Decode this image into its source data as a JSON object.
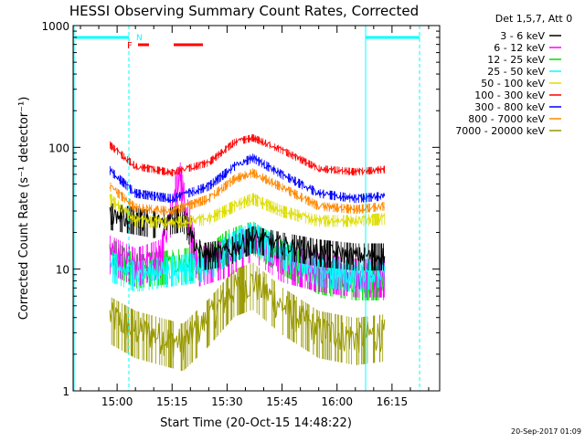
{
  "chart_data": {
    "type": "line",
    "title": "HESSI Observing Summary Count Rates, Corrected",
    "xlabel": "Start Time (20-Oct-15 14:48:22)",
    "ylabel": "Corrected Count Rate (s⁻¹ detector⁻¹)",
    "yscale": "log",
    "ylim": [
      1,
      1000
    ],
    "xlim_minutes": [
      "14:48",
      "16:28"
    ],
    "x_ticks": [
      "15:00",
      "15:15",
      "15:30",
      "15:45",
      "16:00",
      "16:15"
    ],
    "y_ticks": [
      "1",
      "10",
      "100",
      "1000"
    ],
    "data_start": "14:58",
    "data_end": "16:13",
    "legend_header": "Det 1,5,7, Att 0",
    "legend_position": "top-right, outside plot",
    "timestamp": "20-Sep-2017 01:09",
    "series": [
      {
        "name": "3 - 6 keV",
        "color": "#000000",
        "x": [
          "14:58",
          "15:10",
          "15:18",
          "15:23",
          "15:30",
          "15:37",
          "15:45",
          "15:55",
          "16:05",
          "16:13"
        ],
        "y": [
          28,
          24,
          27,
          13,
          14,
          18,
          16,
          14,
          13,
          13
        ]
      },
      {
        "name": "6 - 12 keV",
        "color": "#ff00ff",
        "x": [
          "14:58",
          "15:05",
          "15:12",
          "15:17",
          "15:22",
          "15:30",
          "15:37",
          "15:45",
          "15:55",
          "16:05",
          "16:13"
        ],
        "y": [
          14,
          11,
          13,
          60,
          11,
          13,
          18,
          12,
          10,
          9,
          9
        ]
      },
      {
        "name": "12 - 25 keV",
        "color": "#00dd00",
        "x": [
          "14:58",
          "15:05",
          "15:15",
          "15:25",
          "15:30",
          "15:37",
          "15:45",
          "15:55",
          "16:05",
          "16:13"
        ],
        "y": [
          14,
          10,
          11,
          12,
          16,
          19,
          13,
          9,
          8,
          8
        ]
      },
      {
        "name": "25 - 50 keV",
        "color": "#00ffff",
        "x": [
          "14:58",
          "15:05",
          "15:15",
          "15:25",
          "15:30",
          "15:37",
          "15:45",
          "15:55",
          "16:05",
          "16:13"
        ],
        "y": [
          11,
          9,
          10,
          11,
          15,
          19,
          14,
          10,
          9,
          10
        ]
      },
      {
        "name": "50 - 100 keV",
        "color": "#dddd00",
        "x": [
          "14:58",
          "15:05",
          "15:15",
          "15:25",
          "15:32",
          "15:37",
          "15:45",
          "15:55",
          "16:05",
          "16:13"
        ],
        "y": [
          38,
          25,
          24,
          26,
          33,
          38,
          30,
          25,
          25,
          26
        ]
      },
      {
        "name": "100 - 300 keV",
        "color": "#ff0000",
        "x": [
          "14:58",
          "15:05",
          "15:15",
          "15:25",
          "15:32",
          "15:37",
          "15:45",
          "15:55",
          "16:05",
          "16:13"
        ],
        "y": [
          105,
          70,
          62,
          75,
          110,
          120,
          95,
          67,
          63,
          66
        ]
      },
      {
        "name": "300 - 800 keV",
        "color": "#0000ff",
        "x": [
          "14:58",
          "15:05",
          "15:15",
          "15:25",
          "15:32",
          "15:37",
          "15:45",
          "15:55",
          "16:05",
          "16:13"
        ],
        "y": [
          65,
          42,
          38,
          48,
          70,
          82,
          60,
          42,
          38,
          40
        ]
      },
      {
        "name": "800 - 7000 keV",
        "color": "#ff8800",
        "x": [
          "14:58",
          "15:05",
          "15:15",
          "15:25",
          "15:32",
          "15:37",
          "15:45",
          "15:55",
          "16:05",
          "16:13"
        ],
        "y": [
          48,
          32,
          30,
          38,
          55,
          62,
          47,
          33,
          31,
          33
        ]
      },
      {
        "name": "7000 - 20000 keV",
        "color": "#999900",
        "x": [
          "14:58",
          "15:05",
          "15:12",
          "15:18",
          "15:25",
          "15:32",
          "15:37",
          "15:45",
          "15:55",
          "16:05",
          "16:13"
        ],
        "y": [
          4.2,
          3.2,
          2.8,
          2.5,
          4.0,
          7.0,
          8.0,
          5.0,
          3.2,
          2.8,
          3.0
        ]
      }
    ],
    "annotations": {
      "night_label": "N",
      "flare_label": "F",
      "night_color": "#00ffff",
      "flare_color": "#ff0000"
    }
  }
}
